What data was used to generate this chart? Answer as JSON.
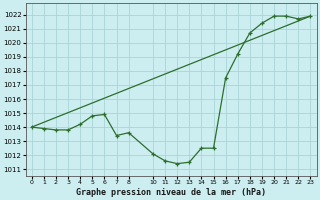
{
  "title": "Graphe pression niveau de la mer (hPa)",
  "background_color": "#cceef0",
  "grid_color": "#aad4d8",
  "line_color": "#2d6e2d",
  "yticks": [
    1011,
    1012,
    1013,
    1014,
    1015,
    1016,
    1017,
    1018,
    1019,
    1020,
    1021,
    1022
  ],
  "ylim_low": 1010.5,
  "ylim_high": 1022.8,
  "x_positions": [
    0,
    1,
    2,
    3,
    4,
    5,
    6,
    7,
    8,
    10,
    11,
    12,
    13,
    14,
    15,
    16,
    17,
    18,
    19,
    20,
    21,
    22,
    23
  ],
  "x_labels": [
    "0",
    "1",
    "2",
    "3",
    "4",
    "5",
    "6",
    "7",
    "8",
    "10",
    "11",
    "12",
    "13",
    "14",
    "15",
    "16",
    "17",
    "18",
    "19",
    "20",
    "21",
    "22",
    "23"
  ],
  "series1_xi": [
    0,
    1,
    2,
    3,
    4,
    5,
    6,
    7,
    8,
    10,
    11,
    12,
    13,
    14,
    15,
    16,
    17,
    18,
    19,
    20,
    21,
    22,
    23
  ],
  "series1_y": [
    1014.0,
    1013.9,
    1013.8,
    1013.8,
    1014.2,
    1014.8,
    1014.9,
    1013.4,
    1013.6,
    1012.1,
    1011.6,
    1011.4,
    1011.5,
    1012.5,
    1012.5,
    1017.5,
    1019.2,
    1020.7,
    1021.4,
    1021.9,
    1021.9,
    1021.7,
    1021.9
  ],
  "series2_xi": [
    0,
    23
  ],
  "series2_y": [
    1014.0,
    1021.9
  ],
  "figwidth": 3.2,
  "figheight": 2.0,
  "dpi": 100
}
